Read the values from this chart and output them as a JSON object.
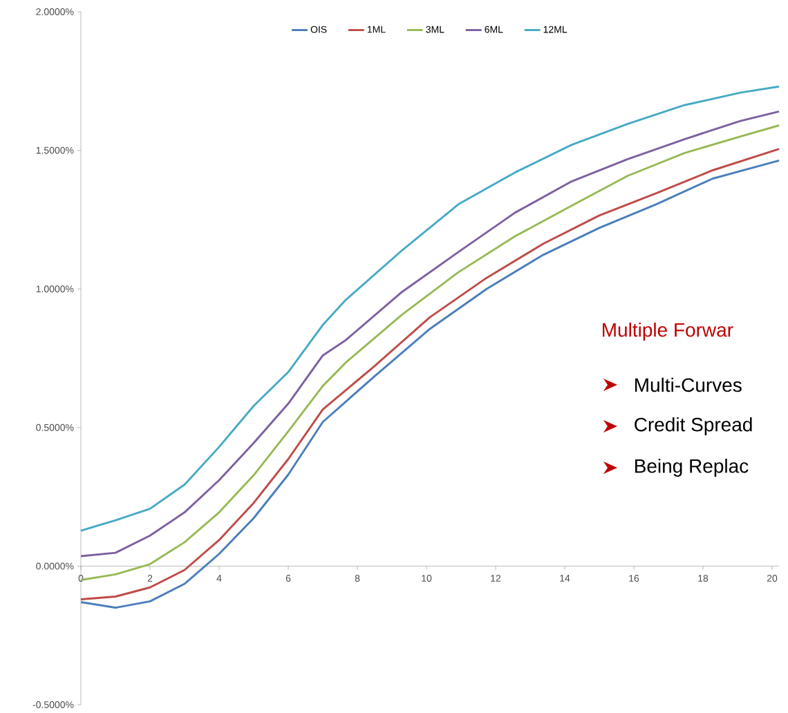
{
  "chart_data": {
    "type": "line",
    "legend": "top",
    "grid": false,
    "marker": "none",
    "line_style": "solid",
    "xlim": [
      0,
      20.2
    ],
    "ylim": [
      -0.5,
      2.0
    ],
    "xticks": [
      0,
      2,
      4,
      6,
      8,
      10,
      12,
      14,
      16,
      18,
      20
    ],
    "yticks": [
      {
        "value": -0.5,
        "label": "-0.5000%"
      },
      {
        "value": 0,
        "label": "0.0000%"
      },
      {
        "value": 0.5,
        "label": "0.5000%"
      },
      {
        "value": 1.0,
        "label": "1.0000%"
      },
      {
        "value": 1.5,
        "label": "1.5000%"
      },
      {
        "value": 2.0,
        "label": "2.0000%"
      }
    ],
    "series": [
      {
        "name": "OIS",
        "color": "#4a7ebb",
        "x": [
          0,
          1,
          2,
          3,
          4,
          5,
          6,
          7,
          8.48,
          10.1,
          11.74,
          13.38,
          15.0,
          16.64,
          18.28,
          20.2
        ],
        "values": [
          -0.13,
          -0.15,
          -0.127,
          -0.064,
          0.044,
          0.173,
          0.33,
          0.52,
          0.683,
          0.856,
          1.0,
          1.123,
          1.22,
          1.305,
          1.398,
          1.463
        ]
      },
      {
        "name": "1ML",
        "color": "#be4b48",
        "x": [
          0,
          1,
          2,
          3,
          4,
          5,
          6,
          7,
          8.48,
          10.1,
          11.74,
          13.38,
          15.0,
          16.64,
          18.28,
          20.2
        ],
        "values": [
          -0.12,
          -0.11,
          -0.077,
          -0.014,
          0.094,
          0.228,
          0.386,
          0.565,
          0.72,
          0.898,
          1.04,
          1.163,
          1.265,
          1.345,
          1.428,
          1.505
        ]
      },
      {
        "name": "3ML",
        "color": "#98b954",
        "x": [
          0,
          1,
          2,
          3,
          4,
          5,
          6,
          7,
          7.66,
          9.3,
          10.92,
          12.56,
          14.2,
          15.82,
          17.46,
          19.08,
          20.2
        ],
        "values": [
          -0.05,
          -0.03,
          0.007,
          0.086,
          0.194,
          0.328,
          0.486,
          0.65,
          0.734,
          0.908,
          1.06,
          1.19,
          1.3,
          1.408,
          1.49,
          1.55,
          1.59
        ]
      },
      {
        "name": "6ML",
        "color": "#7d60a0",
        "x": [
          0,
          1,
          2,
          3,
          4,
          5,
          6,
          7,
          7.66,
          9.3,
          10.92,
          12.56,
          14.2,
          15.82,
          17.46,
          19.08,
          20.2
        ],
        "values": [
          0.036,
          0.048,
          0.11,
          0.194,
          0.31,
          0.444,
          0.586,
          0.76,
          0.815,
          0.99,
          1.133,
          1.275,
          1.388,
          1.468,
          1.54,
          1.606,
          1.64
        ]
      },
      {
        "name": "12ML",
        "color": "#46aac5",
        "x": [
          0,
          1,
          2,
          3,
          4,
          5,
          6,
          7,
          7.66,
          9.3,
          10.92,
          12.56,
          14.2,
          15.82,
          17.46,
          19.08,
          20.2
        ],
        "values": [
          0.128,
          0.165,
          0.207,
          0.294,
          0.43,
          0.578,
          0.7,
          0.87,
          0.96,
          1.14,
          1.305,
          1.42,
          1.52,
          1.595,
          1.663,
          1.708,
          1.73
        ]
      }
    ],
    "annotations": [
      "Multiple Forwar",
      "Multi-Curves",
      "Credit Spread",
      "Being Replac"
    ]
  }
}
